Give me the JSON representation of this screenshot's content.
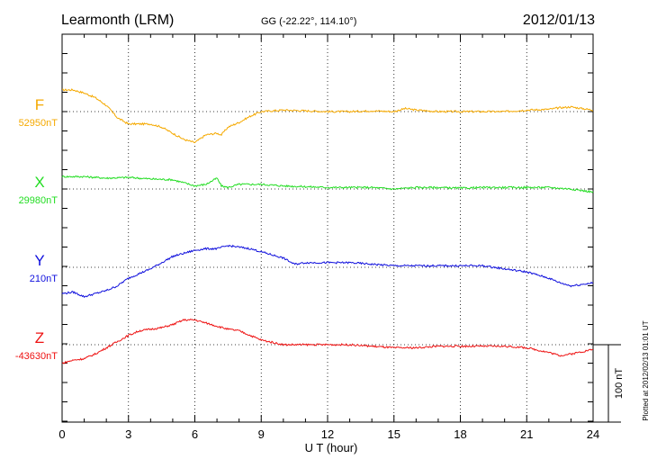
{
  "header": {
    "station": "Learmonth (LRM)",
    "coords": "GG (-22.22°, 114.10°)",
    "date": "2012/01/13"
  },
  "footer_note": "Plotted at 2012/02/13 01:01  UT",
  "chart_data": {
    "type": "line",
    "xlabel": "U T (hour)",
    "xlim": [
      0,
      24
    ],
    "x_ticks": [
      "0",
      "3",
      "6",
      "9",
      "12",
      "15",
      "18",
      "21",
      "24"
    ],
    "scale_bar_label": "100 nT",
    "scale_bar_nT": 100,
    "grid": true,
    "series": [
      {
        "name": "F",
        "baseline_label": "52950nT",
        "baseline_nT": 52950,
        "color": "#f5a900",
        "x": [
          0,
          0.5,
          1.0,
          1.5,
          2.0,
          2.5,
          3.0,
          3.5,
          4.0,
          4.5,
          5.0,
          5.5,
          6.0,
          6.5,
          7.0,
          7.2,
          7.5,
          8.0,
          8.5,
          9.0,
          10,
          11,
          12,
          13,
          14,
          15,
          15.5,
          16,
          17,
          18,
          19,
          20,
          21,
          22,
          22.5,
          23,
          24
        ],
        "y": [
          28,
          28,
          24,
          18,
          8,
          -8,
          -16,
          -16,
          -16,
          -20,
          -28,
          -36,
          -40,
          -30,
          -28,
          -30,
          -20,
          -14,
          -6,
          0,
          2,
          1,
          0,
          0,
          1,
          0,
          4,
          2,
          0,
          0,
          0,
          0,
          2,
          3,
          5,
          6,
          2
        ]
      },
      {
        "name": "X",
        "baseline_label": "29980nT",
        "baseline_nT": 29980,
        "color": "#22dd22",
        "x": [
          0,
          1,
          2,
          3,
          4,
          5,
          5.5,
          6,
          6.5,
          7.0,
          7.2,
          7.5,
          8,
          9,
          10,
          11,
          12,
          13,
          14,
          15,
          16,
          17,
          18,
          19,
          20,
          21,
          22,
          23,
          24
        ],
        "y": [
          16,
          16,
          14,
          15,
          13,
          12,
          8,
          4,
          6,
          14,
          4,
          2,
          6,
          6,
          4,
          3,
          2,
          2,
          2,
          0,
          2,
          2,
          1,
          2,
          2,
          2,
          2,
          0,
          -4
        ]
      },
      {
        "name": "Y",
        "baseline_label": "210nT",
        "baseline_nT": 210,
        "color": "#1010dd",
        "x": [
          0,
          0.5,
          1.0,
          1.5,
          2.0,
          2.5,
          3.0,
          3.5,
          4.0,
          4.5,
          5.0,
          5.5,
          6.0,
          6.5,
          7.0,
          7.5,
          8.0,
          8.5,
          9.0,
          10,
          10.5,
          11,
          12,
          13,
          14,
          15,
          16,
          17,
          18,
          19,
          20,
          21,
          22,
          22.5,
          23,
          24
        ],
        "y": [
          -34,
          -32,
          -38,
          -34,
          -30,
          -24,
          -14,
          -8,
          -2,
          6,
          14,
          18,
          22,
          24,
          24,
          28,
          26,
          24,
          20,
          12,
          4,
          6,
          6,
          6,
          4,
          2,
          2,
          2,
          2,
          2,
          -2,
          -6,
          -14,
          -20,
          -24,
          -20
        ]
      },
      {
        "name": "Z",
        "baseline_label": "-43630nT",
        "baseline_nT": -43630,
        "color": "#ee1111",
        "x": [
          0,
          0.5,
          1.0,
          1.5,
          2.0,
          2.5,
          3.0,
          3.5,
          4.0,
          4.5,
          5.0,
          5.5,
          6.0,
          6.5,
          7.0,
          7.5,
          8.0,
          8.5,
          9.0,
          10,
          11,
          12,
          13,
          14,
          15,
          16,
          17,
          18,
          19,
          20,
          21,
          22,
          22.5,
          23,
          24
        ],
        "y": [
          -24,
          -20,
          -18,
          -12,
          -4,
          4,
          12,
          18,
          20,
          22,
          26,
          32,
          32,
          28,
          24,
          20,
          18,
          12,
          6,
          0,
          0,
          0,
          0,
          -2,
          -4,
          -4,
          -2,
          -2,
          -2,
          -2,
          -4,
          -10,
          -14,
          -12,
          -6
        ]
      }
    ]
  }
}
